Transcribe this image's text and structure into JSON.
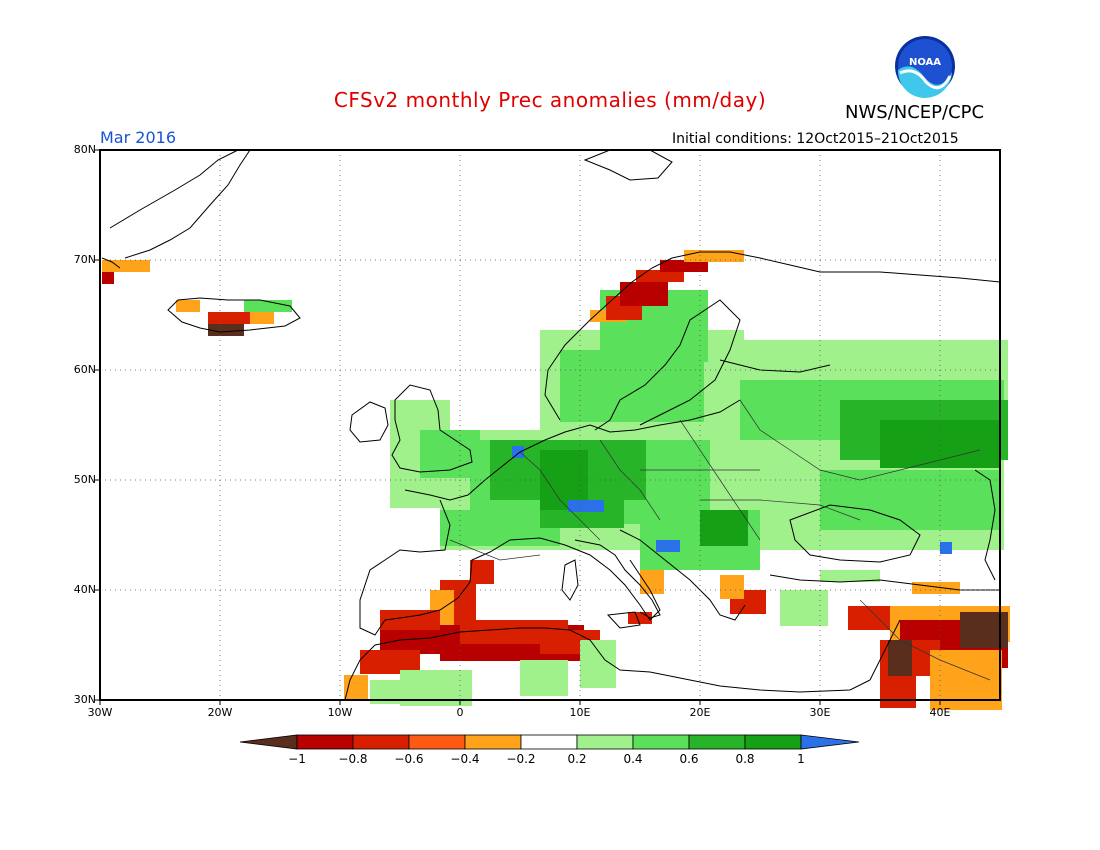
{
  "title": "CFSv2 monthly Prec anomalies (mm/day)",
  "agency": "NWS/NCEP/CPC",
  "logo_text": "NOAA",
  "month": "Mar 2016",
  "initial_conditions": "Initial conditions: 12Oct2015–21Oct2015",
  "map": {
    "lat_labels": [
      "80N",
      "70N",
      "60N",
      "50N",
      "40N",
      "30N"
    ],
    "lon_labels": [
      "30W",
      "20W",
      "10W",
      "0",
      "10E",
      "20E",
      "30E",
      "40E"
    ],
    "extent": {
      "lon_min": -30,
      "lon_max": 45,
      "lat_min": 30,
      "lat_max": 80
    }
  },
  "colorbar": {
    "ticks": [
      "−1",
      "−0.8",
      "−0.6",
      "−0.4",
      "−0.2",
      "0.2",
      "0.4",
      "0.6",
      "0.8",
      "1"
    ],
    "colors": [
      "#5a2e1c",
      "#b80000",
      "#d82000",
      "#ff5a14",
      "#ffa31a",
      "#ffffff",
      "#a0f08c",
      "#5be05b",
      "#28b428",
      "#15a015",
      "#2a70e6"
    ]
  }
}
